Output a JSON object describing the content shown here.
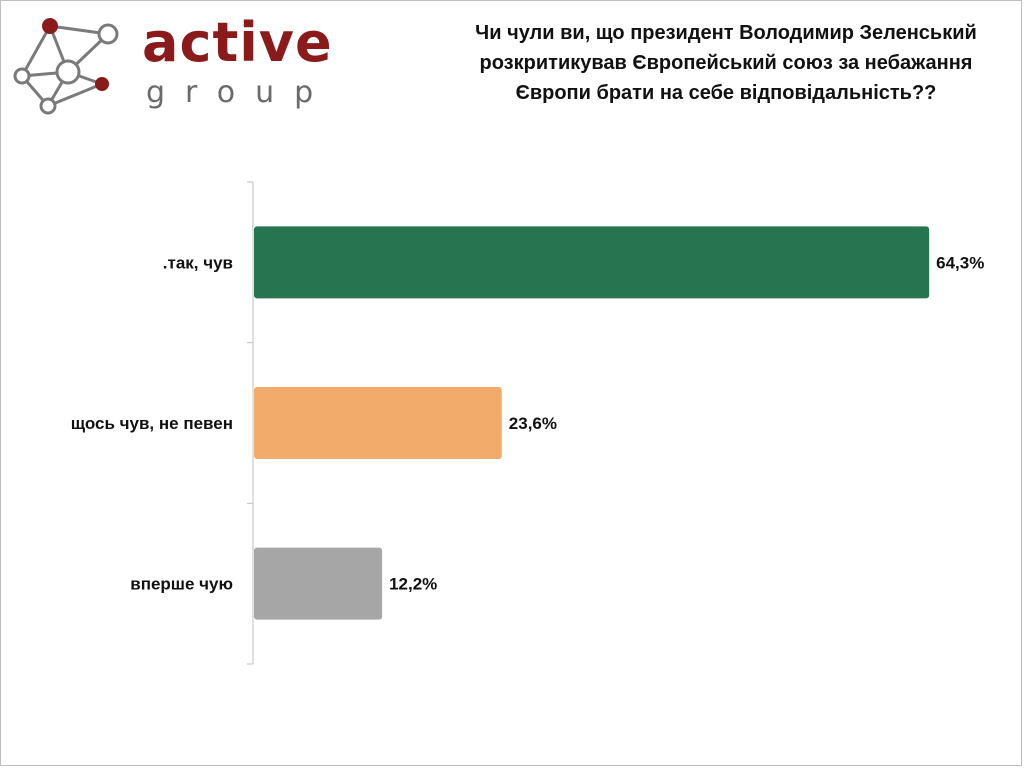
{
  "logo": {
    "word": "active",
    "sub": "group",
    "colors": {
      "primary": "#8b1a1a",
      "secondary": "#6b6b6b"
    }
  },
  "chart_data": {
    "type": "bar",
    "orientation": "horizontal",
    "title": "Чи чули ви, що президент Володимир Зеленський розкритикував Європейський союз за небажання Європи брати на себе відповідальність??",
    "categories": [
      ".так, чув",
      "щось чув, не певен",
      "вперше чую"
    ],
    "values": [
      64.3,
      23.6,
      12.2
    ],
    "value_labels": [
      "64,3%",
      "23,6%",
      "12,2%"
    ],
    "colors": [
      "#277450",
      "#f2ab6b",
      "#a6a6a6"
    ],
    "xlim": [
      0,
      100
    ],
    "grid": false,
    "legend": "none"
  }
}
